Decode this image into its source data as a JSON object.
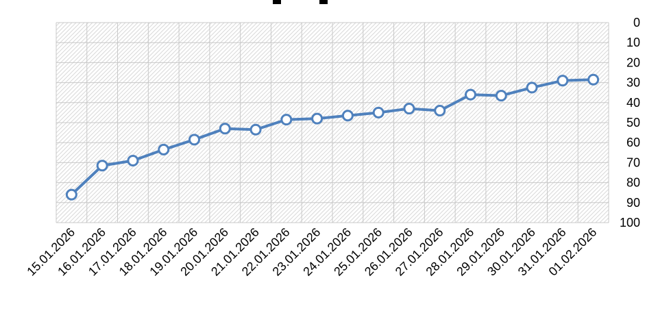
{
  "chart_data": {
    "type": "line",
    "title": "",
    "xlabel": "",
    "ylabel": "",
    "categories": [
      "15.01.2026",
      "16.01.2026",
      "17.01.2026",
      "18.01.2026",
      "19.01.2026",
      "20.01.2026",
      "21.01.2026",
      "22.01.2026",
      "23.01.2026",
      "24.01.2026",
      "25.01.2026",
      "26.01.2026",
      "27.01.2026",
      "28.01.2026",
      "29.01.2026",
      "30.01.2026",
      "31.01.2026",
      "01.02.2026"
    ],
    "series": [
      {
        "values": [
          86,
          71.5,
          69,
          63.5,
          58.5,
          53,
          53.5,
          48.5,
          48,
          46.5,
          45,
          43,
          44,
          36,
          36.5,
          32.5,
          29,
          28.5
        ]
      }
    ],
    "yticks": [
      "0",
      "10",
      "20",
      "30",
      "40",
      "50",
      "60",
      "70",
      "80",
      "90",
      "100"
    ],
    "ylim": [
      0,
      100
    ],
    "y_inverted": true,
    "y_axis_side": "right",
    "grid": true,
    "plot_background": "diagonal-hatch",
    "colors": {
      "line": "#4F81BD",
      "marker_fill": "#ffffff",
      "hatch": "#d9d9d9"
    }
  }
}
